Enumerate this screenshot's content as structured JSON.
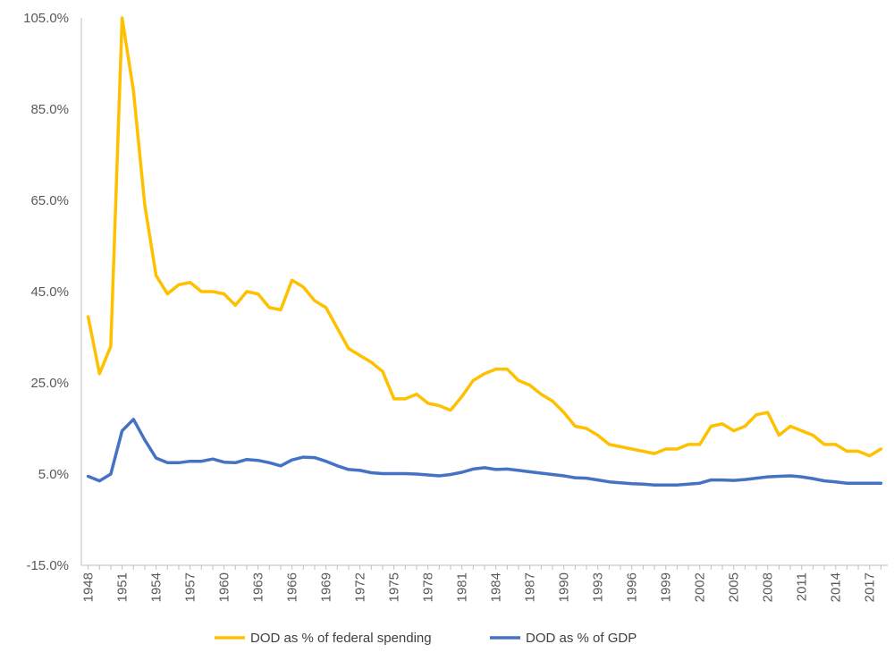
{
  "chart_data": {
    "type": "line",
    "title": "",
    "xlabel": "",
    "ylabel": "",
    "ylim": [
      -15,
      105
    ],
    "y_ticks": [
      "105.0%",
      "85.0%",
      "65.0%",
      "45.0%",
      "25.0%",
      "5.0%",
      "-15.0%"
    ],
    "y_tick_values": [
      105,
      85,
      65,
      45,
      25,
      5,
      -15
    ],
    "x_tick_labels": [
      "1948",
      "1951",
      "1954",
      "1957",
      "1960",
      "1963",
      "1966",
      "1969",
      "1972",
      "1975",
      "1978",
      "1981",
      "1984",
      "1987",
      "1990",
      "1993",
      "1996",
      "1999",
      "2002",
      "2005",
      "2008",
      "2011",
      "2014",
      "2017"
    ],
    "x": [
      1948,
      1949,
      1950,
      1951,
      1952,
      1953,
      1954,
      1955,
      1956,
      1957,
      1958,
      1959,
      1960,
      1961,
      1962,
      1963,
      1964,
      1965,
      1966,
      1967,
      1968,
      1969,
      1970,
      1971,
      1972,
      1973,
      1974,
      1975,
      1976,
      1977,
      1978,
      1979,
      1980,
      1981,
      1982,
      1983,
      1984,
      1985,
      1986,
      1987,
      1988,
      1989,
      1990,
      1991,
      1992,
      1993,
      1994,
      1995,
      1996,
      1997,
      1998,
      1999,
      2000,
      2001,
      2002,
      2003,
      2004,
      2005,
      2006,
      2007,
      2008,
      2009,
      2010,
      2011,
      2012,
      2013,
      2014,
      2015,
      2016,
      2017,
      2018
    ],
    "grid": false,
    "legend_position": "bottom",
    "series": [
      {
        "name": "DOD as % of federal spending",
        "color": "#FFC000",
        "values": [
          39.5,
          27.0,
          33.0,
          105.0,
          89.0,
          64.0,
          48.5,
          44.5,
          46.5,
          47.0,
          45.0,
          45.0,
          44.5,
          42.0,
          45.0,
          44.5,
          41.5,
          41.0,
          47.5,
          46.0,
          43.0,
          41.5,
          37.0,
          32.5,
          31.0,
          29.5,
          27.5,
          21.5,
          21.5,
          22.5,
          20.5,
          20.0,
          19.0,
          22.0,
          25.5,
          27.0,
          28.0,
          28.0,
          25.5,
          24.5,
          22.5,
          21.0,
          18.5,
          15.5,
          15.0,
          13.5,
          11.5,
          11.0,
          10.5,
          10.0,
          9.5,
          10.5,
          10.5,
          11.5,
          11.5,
          15.5,
          16.0,
          14.5,
          15.5,
          18.0,
          18.5,
          13.5,
          15.5,
          14.5,
          13.5,
          11.5,
          11.5,
          10.0,
          10.0,
          9.0,
          10.5
        ]
      },
      {
        "name": "DOD as % of GDP",
        "color": "#4472C4",
        "values": [
          4.5,
          3.5,
          5.0,
          14.5,
          17.0,
          12.5,
          8.5,
          7.5,
          7.5,
          7.8,
          7.8,
          8.3,
          7.6,
          7.5,
          8.2,
          8.0,
          7.5,
          6.8,
          8.1,
          8.7,
          8.6,
          7.8,
          6.8,
          6.0,
          5.8,
          5.3,
          5.1,
          5.1,
          5.1,
          5.0,
          4.8,
          4.6,
          4.9,
          5.4,
          6.1,
          6.4,
          6.0,
          6.1,
          5.8,
          5.5,
          5.2,
          4.9,
          4.6,
          4.2,
          4.1,
          3.7,
          3.3,
          3.1,
          2.9,
          2.8,
          2.6,
          2.6,
          2.6,
          2.8,
          3.0,
          3.7,
          3.7,
          3.6,
          3.8,
          4.1,
          4.4,
          4.5,
          4.6,
          4.4,
          4.0,
          3.5,
          3.3,
          3.0,
          3.0,
          3.0,
          3.0
        ]
      }
    ]
  }
}
